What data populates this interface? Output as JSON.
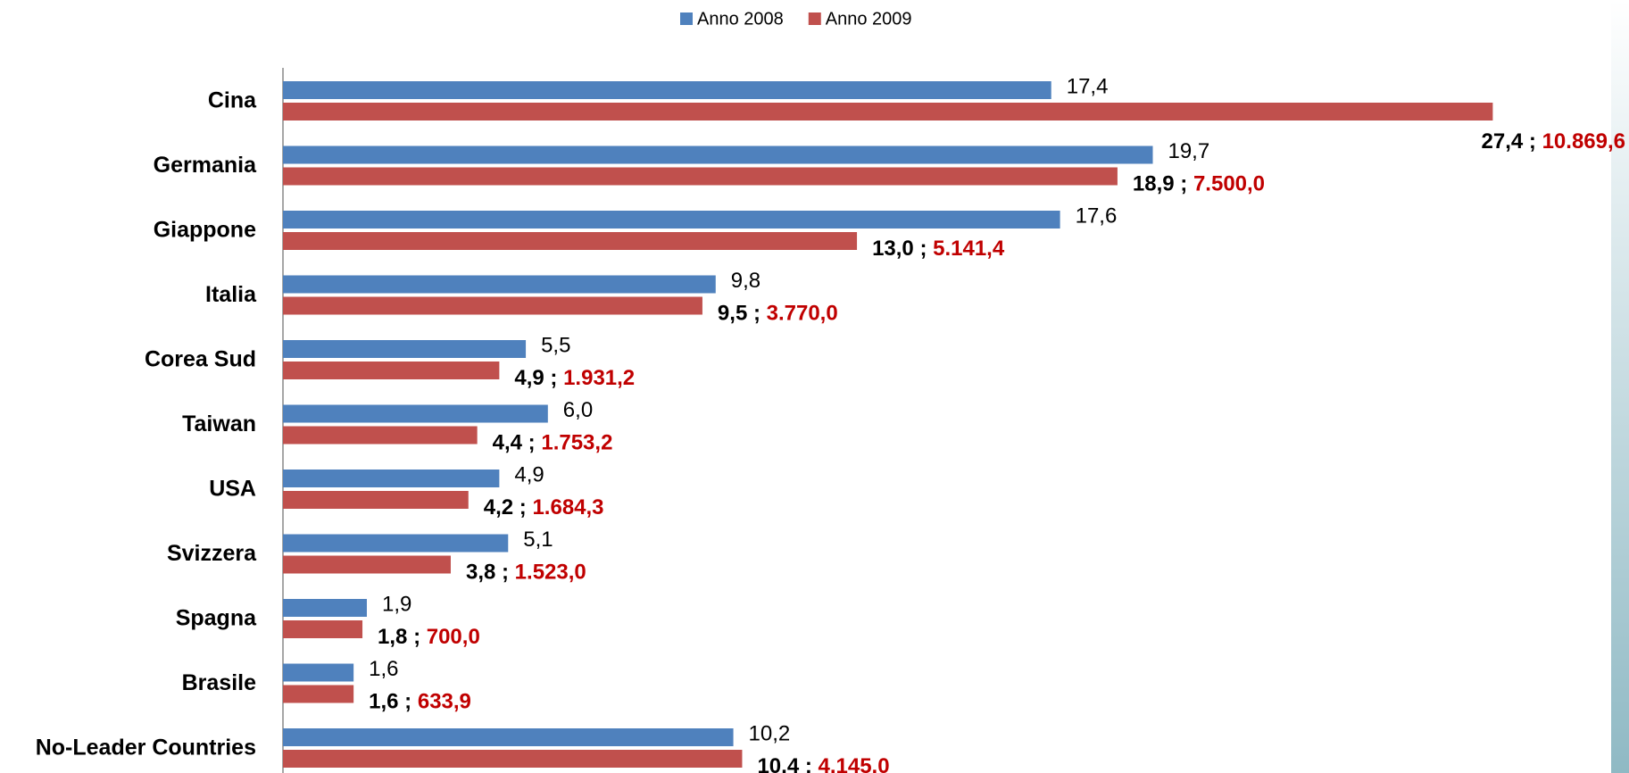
{
  "chart_data": {
    "type": "bar",
    "orientation": "horizontal",
    "categories": [
      "Cina",
      "Germania",
      "Giappone",
      "Italia",
      "Corea Sud",
      "Taiwan",
      "USA",
      "Svizzera",
      "Spagna",
      "Brasile",
      "No-Leader Countries"
    ],
    "series": [
      {
        "name": "Anno 2008",
        "color": "#4f81bd",
        "values": [
          17.4,
          19.7,
          17.6,
          9.8,
          5.5,
          6.0,
          4.9,
          5.1,
          1.9,
          1.6,
          10.2
        ],
        "value_labels": [
          "17,4",
          "19,7",
          "17,6",
          "9,8",
          "5,5",
          "6,0",
          "4,9",
          "5,1",
          "1,9",
          "1,6",
          "10,2"
        ]
      },
      {
        "name": "Anno 2009",
        "color": "#c0504d",
        "values": [
          27.4,
          18.9,
          13.0,
          9.5,
          4.9,
          4.4,
          4.2,
          3.8,
          1.8,
          1.6,
          10.4
        ],
        "value_labels": [
          "27,4",
          "18,9",
          "13,0",
          "9,5",
          "4,9",
          "4,4",
          "4,2",
          "3,8",
          "1,8",
          "1,6",
          "10,4"
        ],
        "label_separator": " ; ",
        "amount_color": "#c00000",
        "amount_labels": [
          "10.869,6",
          "7.500,0",
          "5.141,4",
          "3.770,0",
          "1.931,2",
          "1.753,2",
          "1.684,3",
          "1.523,0",
          "700,0",
          "633,9",
          "4.145,0"
        ]
      }
    ],
    "xlim": [
      0,
      30
    ],
    "legend": "top",
    "grid": false
  }
}
